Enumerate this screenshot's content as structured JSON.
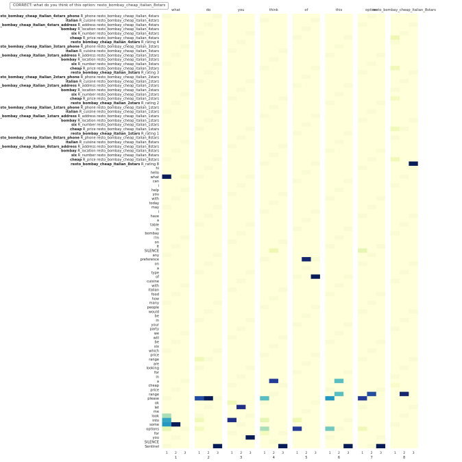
{
  "header": {
    "caption": "CORRECT: what do you think of this option: resto_bombay_cheap_italian_8stars"
  },
  "chart_data": {
    "type": "heatmap",
    "title": "",
    "xlabel": "",
    "ylabel": "",
    "panel_labels": [
      "what",
      "do",
      "you",
      "think",
      "of",
      "this",
      "option:",
      "resto_bombay_cheap_italian_8stars"
    ],
    "panel_numbers": [
      "1",
      "2",
      "3",
      "4",
      "5",
      "6",
      "7",
      "8"
    ],
    "hop_labels": [
      "1",
      "2",
      "3"
    ],
    "rows": [
      {
        "bold": "resto_bombay_cheap_italian_4stars_phone",
        "rest": " R_phone resto_bombay_cheap_italian_4stars"
      },
      {
        "bold": "italian",
        "rest": " R_cuisine resto_bombay_cheap_italian_4stars"
      },
      {
        "bold": "resto_bombay_cheap_italian_4stars_address",
        "rest": " R_address resto_bombay_cheap_italian_4stars"
      },
      {
        "bold": "bombay",
        "rest": " R_location resto_bombay_cheap_italian_4stars"
      },
      {
        "bold": "six",
        "rest": " R_number resto_bombay_cheap_italian_4stars"
      },
      {
        "bold": "cheap",
        "rest": " R_price resto_bombay_cheap_italian_4stars"
      },
      {
        "bold": "resto_bombay_cheap_italian_4stars",
        "rest": " R_rating 4"
      },
      {
        "bold": "resto_bombay_cheap_italian_3stars_phone",
        "rest": " R_phone resto_bombay_cheap_italian_3stars"
      },
      {
        "bold": "italian",
        "rest": " R_cuisine resto_bombay_cheap_italian_3stars"
      },
      {
        "bold": "resto_bombay_cheap_italian_3stars_address",
        "rest": " R_address resto_bombay_cheap_italian_3stars"
      },
      {
        "bold": "bombay",
        "rest": " R_location resto_bombay_cheap_italian_3stars"
      },
      {
        "bold": "six",
        "rest": " R_number resto_bombay_cheap_italian_3stars"
      },
      {
        "bold": "cheap",
        "rest": " R_price resto_bombay_cheap_italian_3stars"
      },
      {
        "bold": "resto_bombay_cheap_italian_3stars",
        "rest": " R_rating 3"
      },
      {
        "bold": "resto_bombay_cheap_italian_2stars_phone",
        "rest": " R_phone resto_bombay_cheap_italian_2stars"
      },
      {
        "bold": "italian",
        "rest": " R_cuisine resto_bombay_cheap_italian_2stars"
      },
      {
        "bold": "resto_bombay_cheap_italian_2stars_address",
        "rest": " R_address resto_bombay_cheap_italian_2stars"
      },
      {
        "bold": "bombay",
        "rest": " R_location resto_bombay_cheap_italian_2stars"
      },
      {
        "bold": "six",
        "rest": " R_number resto_bombay_cheap_italian_2stars"
      },
      {
        "bold": "cheap",
        "rest": " R_price resto_bombay_cheap_italian_2stars"
      },
      {
        "bold": "resto_bombay_cheap_italian_2stars",
        "rest": " R_rating 2"
      },
      {
        "bold": "resto_bombay_cheap_italian_1stars_phone",
        "rest": " R_phone resto_bombay_cheap_italian_1stars"
      },
      {
        "bold": "italian",
        "rest": " R_cuisine resto_bombay_cheap_italian_1stars"
      },
      {
        "bold": "resto_bombay_cheap_italian_1stars_address",
        "rest": " R_address resto_bombay_cheap_italian_1stars"
      },
      {
        "bold": "bombay",
        "rest": " R_location resto_bombay_cheap_italian_1stars"
      },
      {
        "bold": "six",
        "rest": " R_number resto_bombay_cheap_italian_1stars"
      },
      {
        "bold": "cheap",
        "rest": " R_price resto_bombay_cheap_italian_1stars"
      },
      {
        "bold": "resto_bombay_cheap_italian_1stars",
        "rest": " R_rating 1"
      },
      {
        "bold": "resto_bombay_cheap_italian_8stars_phone",
        "rest": " R_phone resto_bombay_cheap_italian_8stars"
      },
      {
        "bold": "italian",
        "rest": " R_cuisine resto_bombay_cheap_italian_8stars"
      },
      {
        "bold": "resto_bombay_cheap_italian_8stars_address",
        "rest": " R_address resto_bombay_cheap_italian_8stars"
      },
      {
        "bold": "bombay",
        "rest": " R_location resto_bombay_cheap_italian_8stars"
      },
      {
        "bold": "six",
        "rest": " R_number resto_bombay_cheap_italian_8stars"
      },
      {
        "bold": "cheap",
        "rest": " R_price resto_bombay_cheap_italian_8stars"
      },
      {
        "bold": "resto_bombay_cheap_italian_8stars",
        "rest": " R_rating 8"
      },
      {
        "bold": "",
        "rest": "hi"
      },
      {
        "bold": "",
        "rest": "hello"
      },
      {
        "bold": "",
        "rest": "what"
      },
      {
        "bold": "",
        "rest": "can"
      },
      {
        "bold": "",
        "rest": "i"
      },
      {
        "bold": "",
        "rest": "help"
      },
      {
        "bold": "",
        "rest": "you"
      },
      {
        "bold": "",
        "rest": "with"
      },
      {
        "bold": "",
        "rest": "today"
      },
      {
        "bold": "",
        "rest": "may"
      },
      {
        "bold": "",
        "rest": "i"
      },
      {
        "bold": "",
        "rest": "have"
      },
      {
        "bold": "",
        "rest": "a"
      },
      {
        "bold": "",
        "rest": "table"
      },
      {
        "bold": "",
        "rest": "in"
      },
      {
        "bold": "",
        "rest": "bombay"
      },
      {
        "bold": "",
        "rest": "i'm"
      },
      {
        "bold": "",
        "rest": "on"
      },
      {
        "bold": "",
        "rest": "it"
      },
      {
        "bold": "",
        "rest": "SILENCE"
      },
      {
        "bold": "",
        "rest": "any"
      },
      {
        "bold": "",
        "rest": "preference"
      },
      {
        "bold": "",
        "rest": "on"
      },
      {
        "bold": "",
        "rest": "a"
      },
      {
        "bold": "",
        "rest": "type"
      },
      {
        "bold": "",
        "rest": "of"
      },
      {
        "bold": "",
        "rest": "cuisine"
      },
      {
        "bold": "",
        "rest": "with"
      },
      {
        "bold": "",
        "rest": "italian"
      },
      {
        "bold": "",
        "rest": "food"
      },
      {
        "bold": "",
        "rest": "how"
      },
      {
        "bold": "",
        "rest": "many"
      },
      {
        "bold": "",
        "rest": "people"
      },
      {
        "bold": "",
        "rest": "would"
      },
      {
        "bold": "",
        "rest": "be"
      },
      {
        "bold": "",
        "rest": "in"
      },
      {
        "bold": "",
        "rest": "your"
      },
      {
        "bold": "",
        "rest": "party"
      },
      {
        "bold": "",
        "rest": "we"
      },
      {
        "bold": "",
        "rest": "will"
      },
      {
        "bold": "",
        "rest": "be"
      },
      {
        "bold": "",
        "rest": "six"
      },
      {
        "bold": "",
        "rest": "which"
      },
      {
        "bold": "",
        "rest": "price"
      },
      {
        "bold": "",
        "rest": "range"
      },
      {
        "bold": "",
        "rest": "are"
      },
      {
        "bold": "",
        "rest": "looking"
      },
      {
        "bold": "",
        "rest": "for"
      },
      {
        "bold": "",
        "rest": "in"
      },
      {
        "bold": "",
        "rest": "a"
      },
      {
        "bold": "",
        "rest": "cheap"
      },
      {
        "bold": "",
        "rest": "price"
      },
      {
        "bold": "",
        "rest": "range"
      },
      {
        "bold": "",
        "rest": "please"
      },
      {
        "bold": "",
        "rest": "ok"
      },
      {
        "bold": "",
        "rest": "let"
      },
      {
        "bold": "",
        "rest": "me"
      },
      {
        "bold": "",
        "rest": "look"
      },
      {
        "bold": "",
        "rest": "into"
      },
      {
        "bold": "",
        "rest": "some"
      },
      {
        "bold": "",
        "rest": "options"
      },
      {
        "bold": "",
        "rest": "for"
      },
      {
        "bold": "",
        "rest": "you"
      },
      {
        "bold": "",
        "rest": "SILENCE"
      },
      {
        "bold": "",
        "rest": "Sentinel"
      }
    ],
    "cells": [
      [
        1,
        1,
        37,
        1.0
      ],
      [
        1,
        3,
        37,
        0.05
      ],
      [
        1,
        1,
        92,
        0.3
      ],
      [
        1,
        1,
        93,
        0.55
      ],
      [
        1,
        1,
        94,
        0.6
      ],
      [
        1,
        2,
        94,
        1.0
      ],
      [
        1,
        1,
        95,
        0.15
      ],
      [
        2,
        1,
        88,
        0.8
      ],
      [
        2,
        2,
        88,
        1.0
      ],
      [
        2,
        1,
        79,
        0.1
      ],
      [
        2,
        1,
        93,
        0.1
      ],
      [
        2,
        1,
        95,
        0.08
      ],
      [
        2,
        3,
        99,
        1.0
      ],
      [
        3,
        2,
        90,
        0.9
      ],
      [
        3,
        1,
        93,
        0.9
      ],
      [
        3,
        1,
        89,
        0.1
      ],
      [
        3,
        3,
        97,
        1.0
      ],
      [
        4,
        2,
        54,
        0.12
      ],
      [
        4,
        2,
        84,
        0.85
      ],
      [
        4,
        1,
        88,
        0.45
      ],
      [
        4,
        1,
        93,
        0.15
      ],
      [
        4,
        1,
        95,
        0.3
      ],
      [
        4,
        1,
        96,
        0.08
      ],
      [
        4,
        3,
        99,
        1.0
      ],
      [
        5,
        2,
        56,
        0.95
      ],
      [
        5,
        3,
        60,
        1.0
      ],
      [
        5,
        1,
        93,
        0.12
      ],
      [
        5,
        1,
        95,
        0.85
      ],
      [
        6,
        2,
        84,
        0.45
      ],
      [
        6,
        2,
        87,
        0.45
      ],
      [
        6,
        1,
        88,
        0.6
      ],
      [
        6,
        1,
        95,
        0.4
      ],
      [
        6,
        3,
        99,
        1.0
      ],
      [
        7,
        1,
        54,
        0.15
      ],
      [
        7,
        2,
        87,
        0.8
      ],
      [
        7,
        1,
        88,
        0.85
      ],
      [
        7,
        1,
        95,
        0.1
      ],
      [
        7,
        3,
        99,
        1.0
      ],
      [
        8,
        1,
        5,
        0.12
      ],
      [
        8,
        1,
        12,
        0.1
      ],
      [
        8,
        1,
        19,
        0.08
      ],
      [
        8,
        1,
        26,
        0.1
      ],
      [
        8,
        1,
        33,
        0.1
      ],
      [
        8,
        3,
        34,
        1.0
      ],
      [
        8,
        2,
        87,
        0.95
      ],
      [
        8,
        1,
        85,
        0.05
      ]
    ],
    "color_scale": [
      "#ffffd9",
      "#edf8b1",
      "#c7e9b4",
      "#7fcdbb",
      "#41b6c4",
      "#1d91c0",
      "#225ea8",
      "#253494",
      "#081d58"
    ]
  }
}
